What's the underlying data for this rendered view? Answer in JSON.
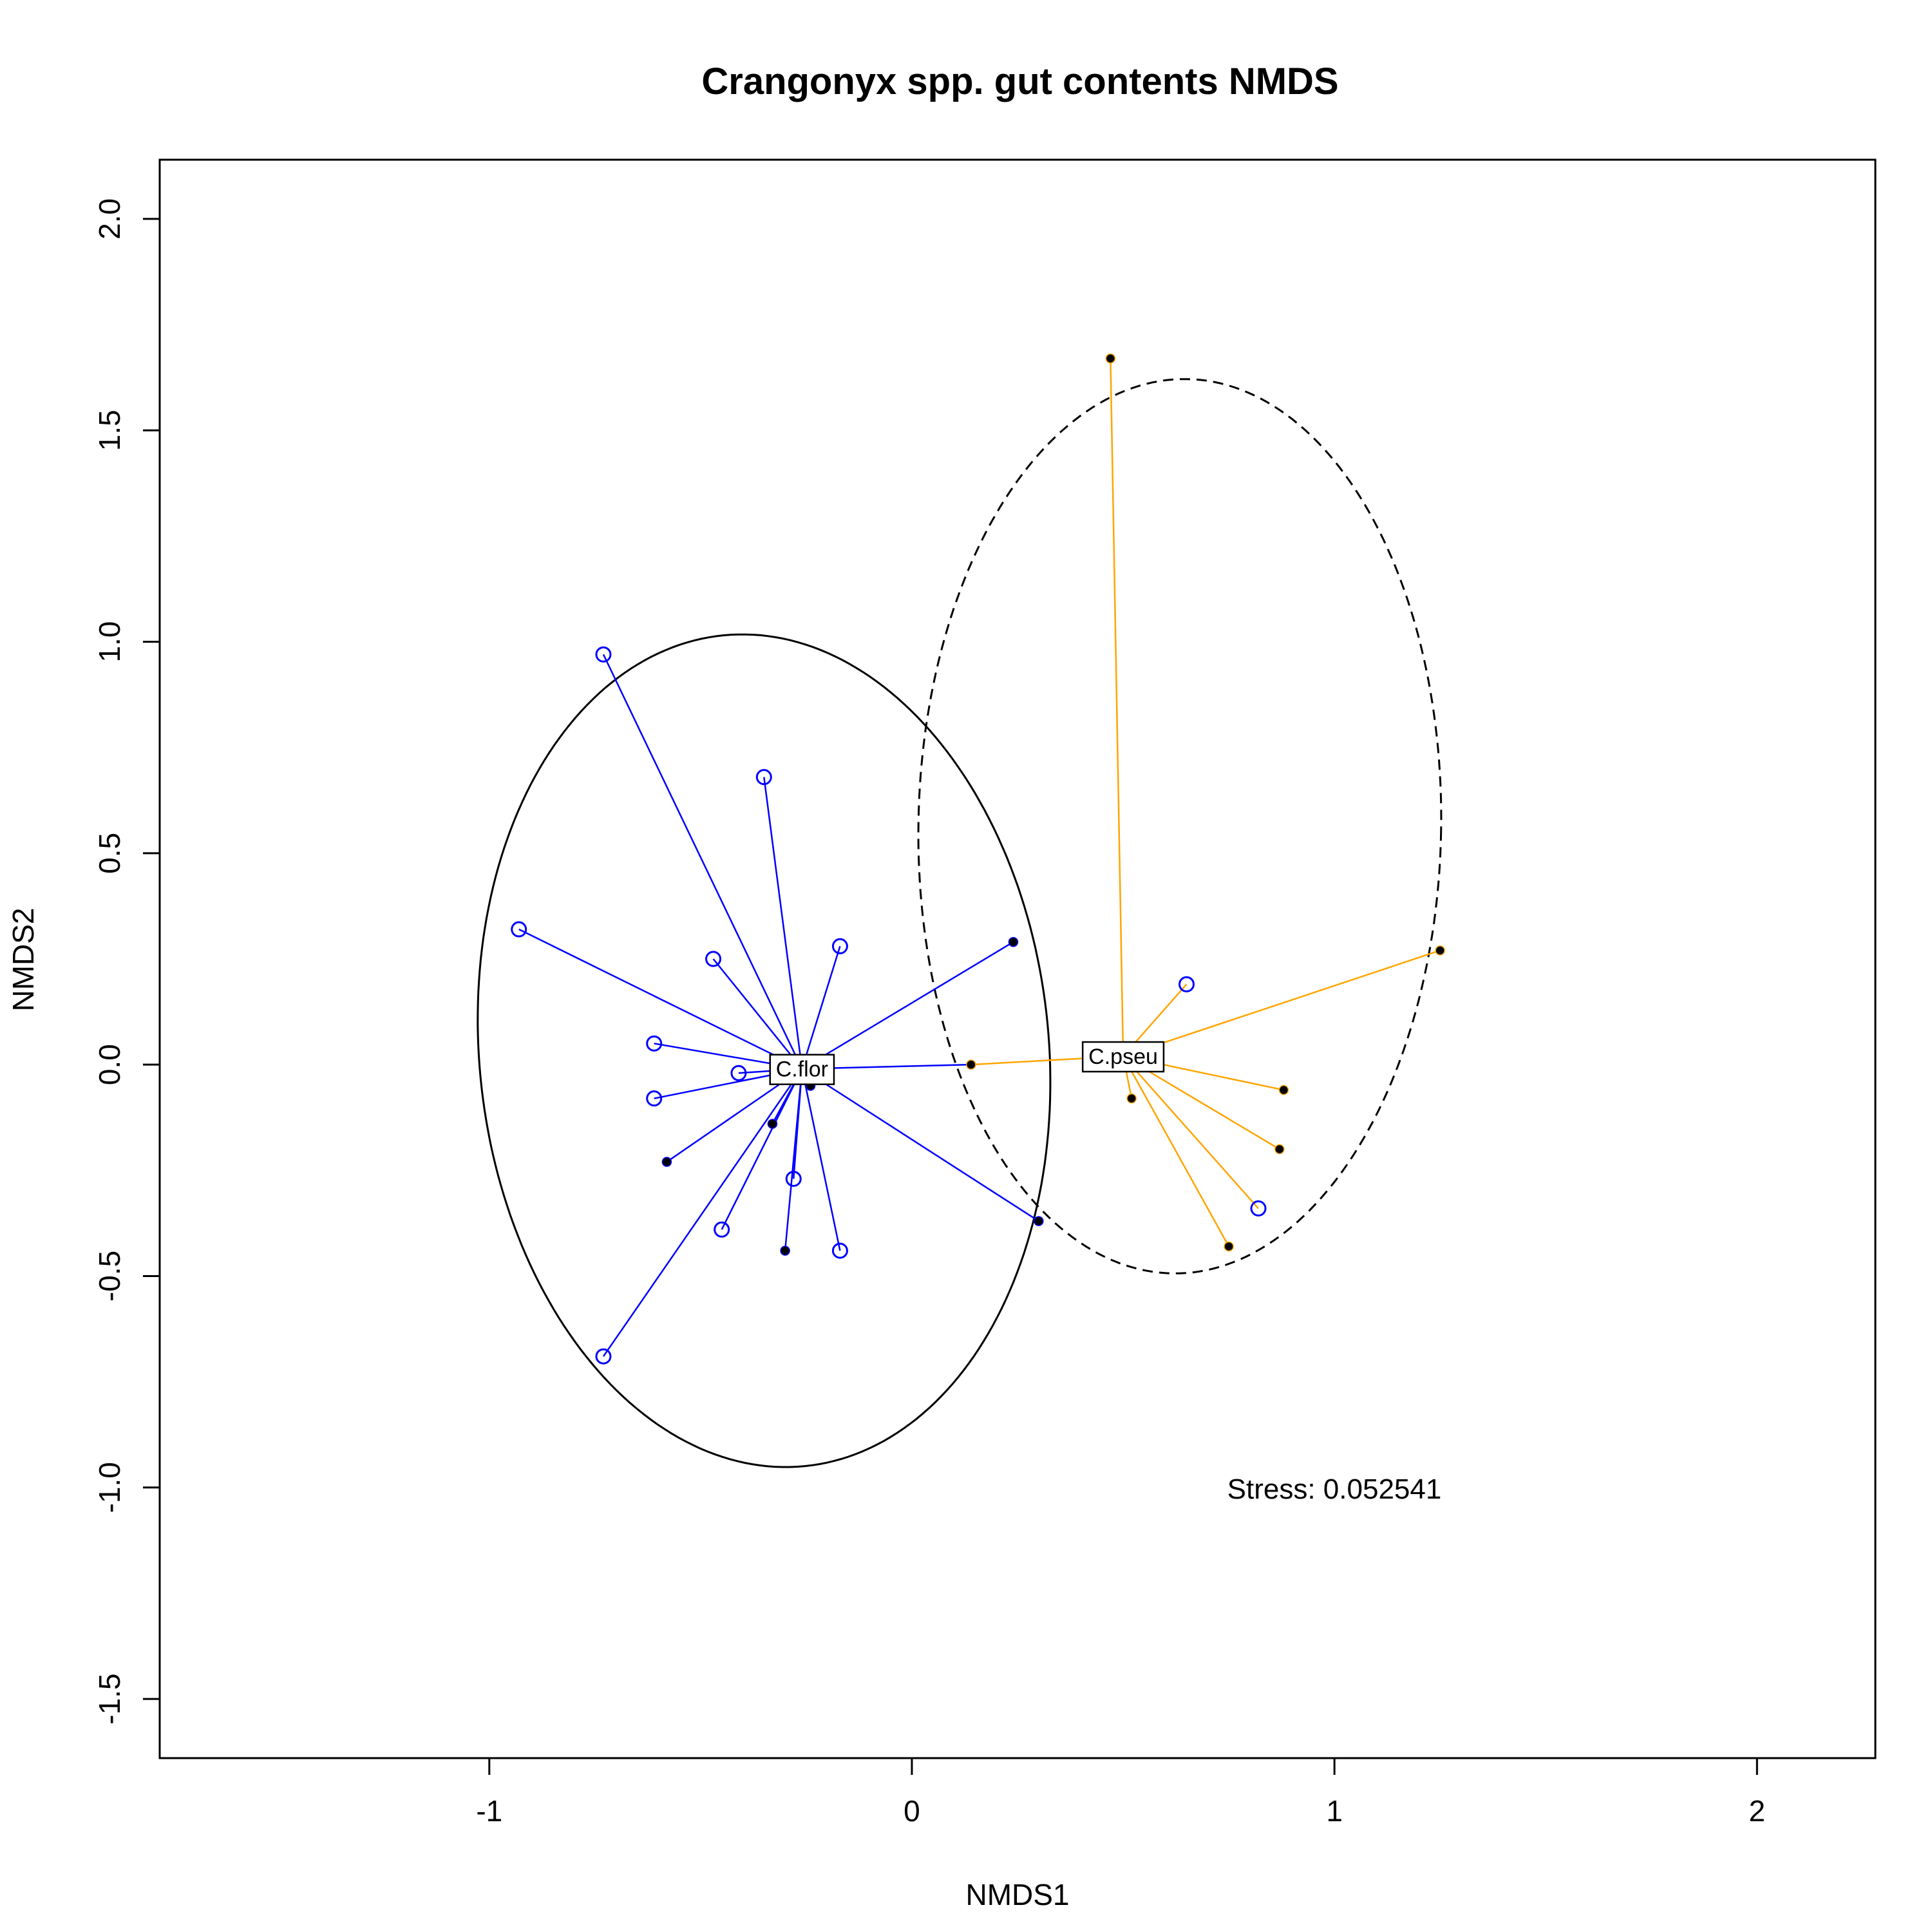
{
  "chart_data": {
    "type": "scatter",
    "title": "Crangonyx spp. gut contents NMDS",
    "xlabel": "NMDS1",
    "ylabel": "NMDS2",
    "xlim": [
      -1.78,
      2.28
    ],
    "ylim": [
      -1.64,
      2.14
    ],
    "xticks": [
      "-1",
      "0",
      "1",
      "2"
    ],
    "yticks": [
      "-1.5",
      "-1.0",
      "-0.5",
      "0.0",
      "0.5",
      "1.0",
      "1.5",
      "2.0"
    ],
    "annotation": "Stress: 0.052541",
    "grid": false,
    "legend": "none",
    "colors": {
      "C.flor": "#0000ff",
      "C.pseu": "#ffa500",
      "solid_point": "#000000"
    },
    "groups": [
      {
        "name": "C.flor",
        "centroid": [
          -0.26,
          -0.01
        ],
        "ellipse": {
          "line": "solid",
          "points": [
            [
              -1.05,
              0.24
            ],
            [
              -0.5,
              1.03
            ],
            [
              0.15,
              0.64
            ],
            [
              0.32,
              -0.14
            ],
            [
              -0.22,
              -0.96
            ],
            [
              -0.9,
              -0.4
            ],
            [
              -1.04,
              0.05
            ],
            [
              -0.82,
              0.72
            ]
          ]
        },
        "spoke_color": "#0000ff",
        "points": [
          {
            "x": -0.73,
            "y": 0.97,
            "marker": "open"
          },
          {
            "x": -0.35,
            "y": 0.68,
            "marker": "open"
          },
          {
            "x": -0.93,
            "y": 0.32,
            "marker": "open"
          },
          {
            "x": -0.47,
            "y": 0.25,
            "marker": "open"
          },
          {
            "x": -0.17,
            "y": 0.28,
            "marker": "open"
          },
          {
            "x": 0.24,
            "y": 0.29,
            "marker": "filled"
          },
          {
            "x": -0.61,
            "y": 0.05,
            "marker": "open"
          },
          {
            "x": -0.41,
            "y": -0.02,
            "marker": "open"
          },
          {
            "x": -0.61,
            "y": -0.08,
            "marker": "open"
          },
          {
            "x": -0.24,
            "y": -0.05,
            "marker": "filled"
          },
          {
            "x": -0.33,
            "y": -0.14,
            "marker": "filled"
          },
          {
            "x": -0.58,
            "y": -0.23,
            "marker": "filled"
          },
          {
            "x": -0.28,
            "y": -0.27,
            "marker": "open"
          },
          {
            "x": -0.45,
            "y": -0.39,
            "marker": "open"
          },
          {
            "x": -0.3,
            "y": -0.44,
            "marker": "filled"
          },
          {
            "x": -0.17,
            "y": -0.44,
            "marker": "open"
          },
          {
            "x": 0.3,
            "y": -0.37,
            "marker": "filled"
          },
          {
            "x": -0.73,
            "y": -0.69,
            "marker": "open"
          },
          {
            "x": 0.14,
            "y": 0.0,
            "marker": "filled"
          }
        ]
      },
      {
        "name": "C.pseu",
        "centroid": [
          0.5,
          0.02
        ],
        "ellipse": {
          "line": "dashed",
          "points": [
            [
              0.55,
              1.68
            ],
            [
              1.29,
              0.5
            ],
            [
              0.69,
              -0.44
            ],
            [
              0.02,
              0.5
            ],
            [
              0.2,
              1.25
            ],
            [
              1.06,
              1.19
            ],
            [
              1.06,
              -0.2
            ],
            [
              0.09,
              -0.04
            ]
          ]
        },
        "spoke_color": "#ffa500",
        "points": [
          {
            "x": 0.47,
            "y": 1.67,
            "marker": "filled"
          },
          {
            "x": 1.25,
            "y": 0.27,
            "marker": "filled"
          },
          {
            "x": 0.65,
            "y": 0.19,
            "marker": "open"
          },
          {
            "x": 0.14,
            "y": 0.0,
            "marker": "filled"
          },
          {
            "x": 0.88,
            "y": -0.06,
            "marker": "filled"
          },
          {
            "x": 0.87,
            "y": -0.2,
            "marker": "filled"
          },
          {
            "x": 0.82,
            "y": -0.34,
            "marker": "open"
          },
          {
            "x": 0.75,
            "y": -0.43,
            "marker": "filled"
          },
          {
            "x": 0.52,
            "y": -0.08,
            "marker": "filled"
          }
        ]
      }
    ]
  }
}
